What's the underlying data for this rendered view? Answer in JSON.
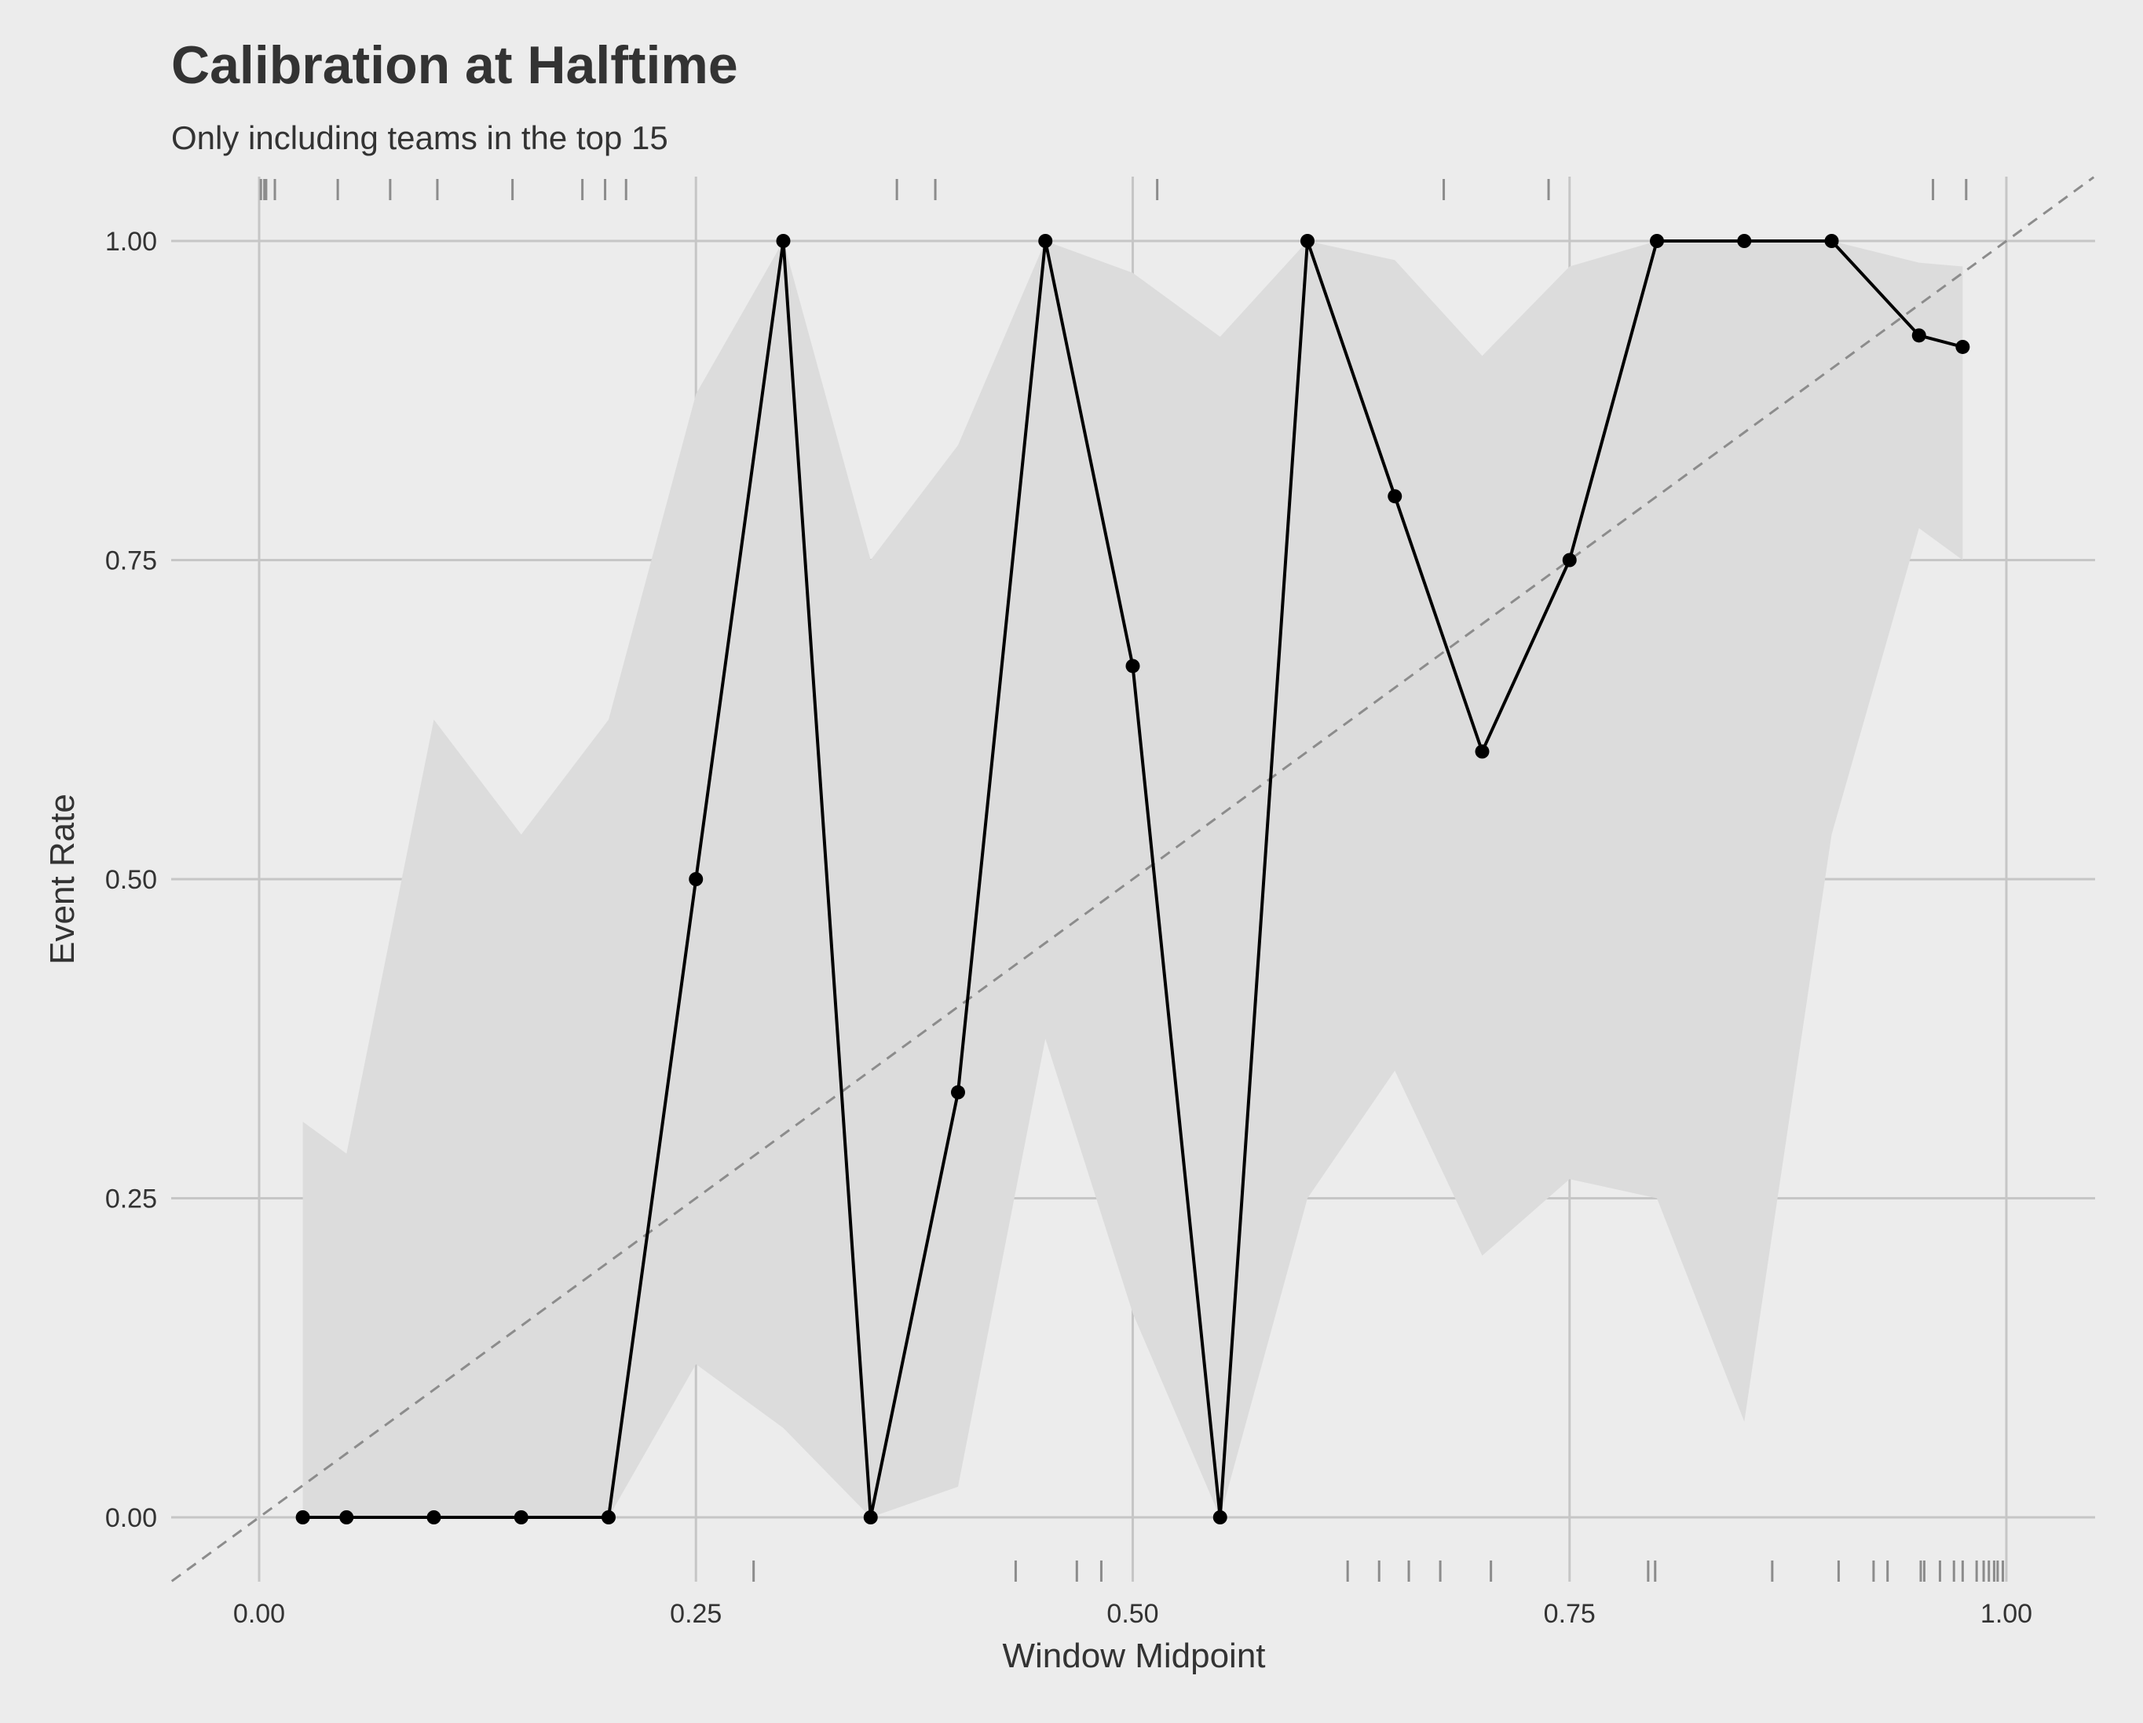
{
  "title": "Calibration at Halftime",
  "subtitle": "Only including teams in the top 15",
  "chart_data": {
    "type": "line",
    "title": "Calibration at Halftime",
    "subtitle": "Only including teams in the top 15",
    "xlabel": "Window Midpoint",
    "ylabel": "Event Rate",
    "xlim": [
      -0.05,
      1.05
    ],
    "ylim": [
      -0.05,
      1.05
    ],
    "x_ticks": [
      0,
      0.25,
      0.5,
      0.75,
      1
    ],
    "x_tick_labels": [
      "0.00",
      "0.25",
      "0.50",
      "0.75",
      "1.00"
    ],
    "y_ticks": [
      0,
      0.25,
      0.5,
      0.75,
      1
    ],
    "y_tick_labels": [
      "0.00",
      "0.25",
      "0.50",
      "0.75",
      "1.00"
    ],
    "grid": true,
    "legend": "none",
    "series": [
      {
        "x": [
          0.025,
          0.05,
          0.1,
          0.15,
          0.2,
          0.25,
          0.3,
          0.35,
          0.4,
          0.45,
          0.5,
          0.55,
          0.6,
          0.65,
          0.7,
          0.75,
          0.8,
          0.85,
          0.9,
          0.95,
          0.975
        ],
        "y": [
          0,
          0,
          0,
          0,
          0,
          0.5,
          1,
          0,
          0.333,
          1,
          0.667,
          0,
          1,
          0.8,
          0.6,
          0.75,
          1,
          1,
          1,
          0.926,
          0.917
        ],
        "ci_lower": [
          0,
          0,
          0,
          0,
          0,
          0.12,
          0.07,
          0,
          0.024,
          0.375,
          0.16,
          0,
          0.25,
          0.35,
          0.205,
          0.265,
          0.25,
          0.075,
          0.535,
          0.775,
          0.75
        ],
        "ci_upper": [
          0.31,
          0.285,
          0.625,
          0.535,
          0.625,
          0.88,
          1,
          0.75,
          0.84,
          1,
          0.975,
          0.925,
          1,
          0.985,
          0.91,
          0.98,
          1,
          1,
          1,
          0.983,
          0.98
        ],
        "color": "#000000"
      }
    ],
    "reference_line": {
      "slope": 1,
      "intercept": 0,
      "style": "dashed",
      "color": "#8c8c8c"
    },
    "rug_top_x": [
      0.001,
      0.003,
      0.004,
      0.009,
      0.045,
      0.075,
      0.102,
      0.145,
      0.185,
      0.198,
      0.21,
      0.365,
      0.387,
      0.514,
      0.678,
      0.738,
      0.958,
      0.977
    ],
    "rug_bottom_x": [
      0.283,
      0.433,
      0.468,
      0.482,
      0.623,
      0.641,
      0.658,
      0.676,
      0.705,
      0.795,
      0.799,
      0.866,
      0.904,
      0.924,
      0.932,
      0.951,
      0.953,
      0.962,
      0.97,
      0.975,
      0.983,
      0.987,
      0.99,
      0.993,
      0.995,
      0.998
    ],
    "colors": {
      "background": "#ececec",
      "band": "#dcdcdc",
      "grid": "#c6c6c6",
      "line": "#000000",
      "rug": "#8c8c8c",
      "reference": "#8c8c8c",
      "text": "#333333"
    }
  }
}
